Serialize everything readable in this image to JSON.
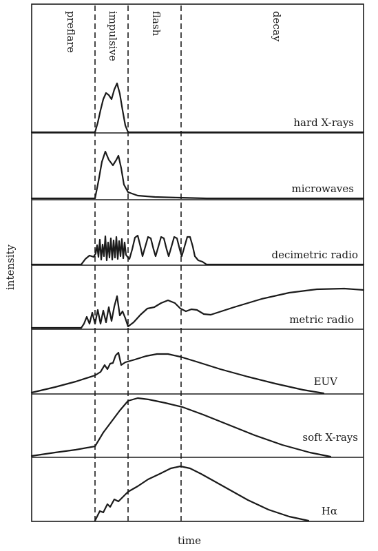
{
  "phases": [
    "preflare",
    "impulsive",
    "flash",
    "decay"
  ],
  "panels": [
    {
      "label": "hard X-rays"
    },
    {
      "label": "microwaves"
    },
    {
      "label": "decimetric radio"
    },
    {
      "label": "metric radio"
    },
    {
      "label": "EUV"
    },
    {
      "label": "soft X-rays"
    },
    {
      "label": "Hα"
    }
  ],
  "axes": {
    "xlabel": "time",
    "ylabel": "intensity"
  },
  "style": {
    "ink": "#1a1a1a",
    "background": "#ffffff"
  }
}
